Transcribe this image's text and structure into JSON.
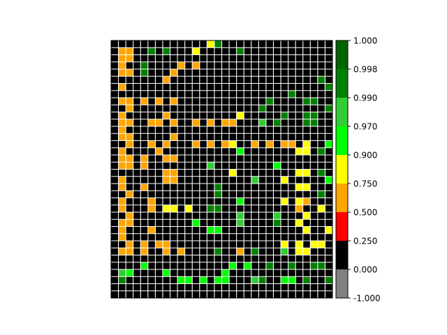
{
  "chart_data": {
    "type": "heatmap",
    "rows": 36,
    "cols": 30,
    "grid": true,
    "legend": "colorbar-right",
    "colors": {
      "-1": "#808080",
      "0": "#000000",
      "1": "#ff0000",
      "2": "#ffa500",
      "3": "#ffff00",
      "4": "#00ff00",
      "5": "#32cd32",
      "6": "#008000",
      "7": "#006400",
      "grid_line": "#ffffff",
      "frame": "#000000"
    },
    "colorbar": {
      "boundaries": [
        -1.0,
        0.0,
        0.25,
        0.5,
        0.75,
        0.9,
        0.97,
        0.99,
        0.998,
        1.0
      ],
      "tick_labels": [
        "-1.000",
        "0.000",
        "0.250",
        "0.500",
        "0.750",
        "0.900",
        "0.970",
        "0.990",
        "0.998",
        "1.000"
      ]
    },
    "cells": [
      [
        0,
        13,
        3
      ],
      [
        0,
        14,
        6
      ],
      [
        1,
        1,
        2
      ],
      [
        1,
        2,
        2
      ],
      [
        1,
        5,
        6
      ],
      [
        1,
        7,
        6
      ],
      [
        1,
        11,
        3
      ],
      [
        1,
        17,
        6
      ],
      [
        2,
        1,
        2
      ],
      [
        2,
        2,
        2
      ],
      [
        3,
        1,
        2
      ],
      [
        3,
        4,
        6
      ],
      [
        3,
        9,
        2
      ],
      [
        3,
        11,
        2
      ],
      [
        4,
        1,
        2
      ],
      [
        4,
        2,
        2
      ],
      [
        4,
        4,
        6
      ],
      [
        4,
        8,
        2
      ],
      [
        5,
        7,
        2
      ],
      [
        5,
        28,
        6
      ],
      [
        6,
        1,
        2
      ],
      [
        6,
        29,
        6
      ],
      [
        7,
        24,
        6
      ],
      [
        8,
        1,
        2
      ],
      [
        8,
        2,
        2
      ],
      [
        8,
        4,
        2
      ],
      [
        8,
        6,
        2
      ],
      [
        8,
        8,
        2
      ],
      [
        8,
        21,
        6
      ],
      [
        8,
        26,
        6
      ],
      [
        8,
        27,
        6
      ],
      [
        9,
        2,
        2
      ],
      [
        9,
        20,
        6
      ],
      [
        9,
        29,
        6
      ],
      [
        10,
        1,
        2
      ],
      [
        10,
        7,
        2
      ],
      [
        10,
        17,
        3
      ],
      [
        10,
        23,
        6
      ],
      [
        10,
        26,
        6
      ],
      [
        10,
        27,
        6
      ],
      [
        11,
        1,
        2
      ],
      [
        11,
        2,
        2
      ],
      [
        11,
        5,
        2
      ],
      [
        11,
        6,
        2
      ],
      [
        11,
        8,
        2
      ],
      [
        11,
        11,
        2
      ],
      [
        11,
        13,
        2
      ],
      [
        11,
        15,
        2
      ],
      [
        11,
        16,
        2
      ],
      [
        11,
        20,
        5
      ],
      [
        11,
        22,
        6
      ],
      [
        11,
        26,
        6
      ],
      [
        11,
        27,
        6
      ],
      [
        12,
        1,
        2
      ],
      [
        13,
        1,
        2
      ],
      [
        13,
        2,
        2
      ],
      [
        13,
        8,
        2
      ],
      [
        14,
        2,
        2
      ],
      [
        14,
        5,
        2
      ],
      [
        14,
        7,
        2
      ],
      [
        14,
        11,
        2
      ],
      [
        14,
        13,
        2
      ],
      [
        14,
        15,
        2
      ],
      [
        14,
        16,
        3
      ],
      [
        14,
        19,
        2
      ],
      [
        14,
        21,
        2
      ],
      [
        14,
        23,
        2
      ],
      [
        14,
        24,
        2
      ],
      [
        14,
        26,
        3
      ],
      [
        14,
        29,
        4
      ],
      [
        15,
        1,
        2
      ],
      [
        15,
        6,
        2
      ],
      [
        15,
        17,
        4
      ],
      [
        15,
        25,
        3
      ],
      [
        15,
        26,
        3
      ],
      [
        15,
        28,
        6
      ],
      [
        16,
        1,
        2
      ],
      [
        16,
        2,
        2
      ],
      [
        16,
        4,
        2
      ],
      [
        16,
        7,
        2
      ],
      [
        16,
        8,
        2
      ],
      [
        17,
        1,
        2
      ],
      [
        17,
        2,
        2
      ],
      [
        17,
        4,
        2
      ],
      [
        17,
        13,
        5
      ],
      [
        17,
        22,
        4
      ],
      [
        18,
        7,
        2
      ],
      [
        18,
        8,
        2
      ],
      [
        18,
        16,
        3
      ],
      [
        18,
        25,
        3
      ],
      [
        18,
        26,
        3
      ],
      [
        18,
        28,
        6
      ],
      [
        19,
        1,
        2
      ],
      [
        19,
        7,
        2
      ],
      [
        19,
        8,
        2
      ],
      [
        19,
        19,
        5
      ],
      [
        19,
        23,
        3
      ],
      [
        19,
        29,
        4
      ],
      [
        20,
        1,
        2
      ],
      [
        20,
        4,
        2
      ],
      [
        20,
        14,
        6
      ],
      [
        20,
        25,
        3
      ],
      [
        20,
        26,
        3
      ],
      [
        21,
        2,
        2
      ],
      [
        21,
        14,
        6
      ],
      [
        21,
        28,
        6
      ],
      [
        22,
        1,
        2
      ],
      [
        22,
        5,
        2
      ],
      [
        22,
        17,
        4
      ],
      [
        22,
        23,
        3
      ],
      [
        22,
        25,
        3
      ],
      [
        22,
        26,
        2
      ],
      [
        23,
        1,
        2
      ],
      [
        23,
        5,
        2
      ],
      [
        23,
        7,
        3
      ],
      [
        23,
        8,
        3
      ],
      [
        23,
        10,
        3
      ],
      [
        23,
        13,
        6
      ],
      [
        23,
        14,
        6
      ],
      [
        23,
        25,
        2
      ],
      [
        23,
        28,
        3
      ],
      [
        24,
        2,
        2
      ],
      [
        24,
        17,
        5
      ],
      [
        24,
        22,
        5
      ],
      [
        24,
        26,
        3
      ],
      [
        25,
        1,
        2
      ],
      [
        25,
        2,
        2
      ],
      [
        25,
        11,
        4
      ],
      [
        25,
        17,
        5
      ],
      [
        25,
        22,
        6
      ],
      [
        25,
        25,
        3
      ],
      [
        26,
        1,
        2
      ],
      [
        26,
        5,
        2
      ],
      [
        26,
        13,
        4
      ],
      [
        26,
        14,
        4
      ],
      [
        26,
        26,
        3
      ],
      [
        26,
        29,
        3
      ],
      [
        27,
        1,
        2
      ],
      [
        28,
        2,
        2
      ],
      [
        28,
        4,
        2
      ],
      [
        28,
        6,
        2
      ],
      [
        28,
        7,
        2
      ],
      [
        28,
        23,
        3
      ],
      [
        28,
        25,
        3
      ],
      [
        28,
        27,
        3
      ],
      [
        28,
        28,
        3
      ],
      [
        29,
        1,
        2
      ],
      [
        29,
        2,
        2
      ],
      [
        29,
        4,
        2
      ],
      [
        29,
        7,
        2
      ],
      [
        29,
        9,
        2
      ],
      [
        29,
        14,
        6
      ],
      [
        29,
        17,
        2
      ],
      [
        29,
        19,
        6
      ],
      [
        29,
        23,
        5
      ],
      [
        29,
        25,
        3
      ],
      [
        29,
        26,
        3
      ],
      [
        31,
        4,
        4
      ],
      [
        31,
        16,
        4
      ],
      [
        31,
        18,
        4
      ],
      [
        31,
        21,
        6
      ],
      [
        31,
        24,
        6
      ],
      [
        31,
        27,
        6
      ],
      [
        31,
        28,
        6
      ],
      [
        32,
        1,
        5
      ],
      [
        32,
        2,
        4
      ],
      [
        32,
        7,
        4
      ],
      [
        32,
        15,
        4
      ],
      [
        33,
        1,
        6
      ],
      [
        33,
        9,
        4
      ],
      [
        33,
        10,
        4
      ],
      [
        33,
        12,
        4
      ],
      [
        33,
        14,
        4
      ],
      [
        33,
        15,
        4
      ],
      [
        33,
        19,
        5
      ],
      [
        33,
        20,
        6
      ],
      [
        33,
        23,
        4
      ],
      [
        33,
        24,
        4
      ],
      [
        33,
        26,
        6
      ],
      [
        33,
        29,
        6
      ]
    ]
  }
}
